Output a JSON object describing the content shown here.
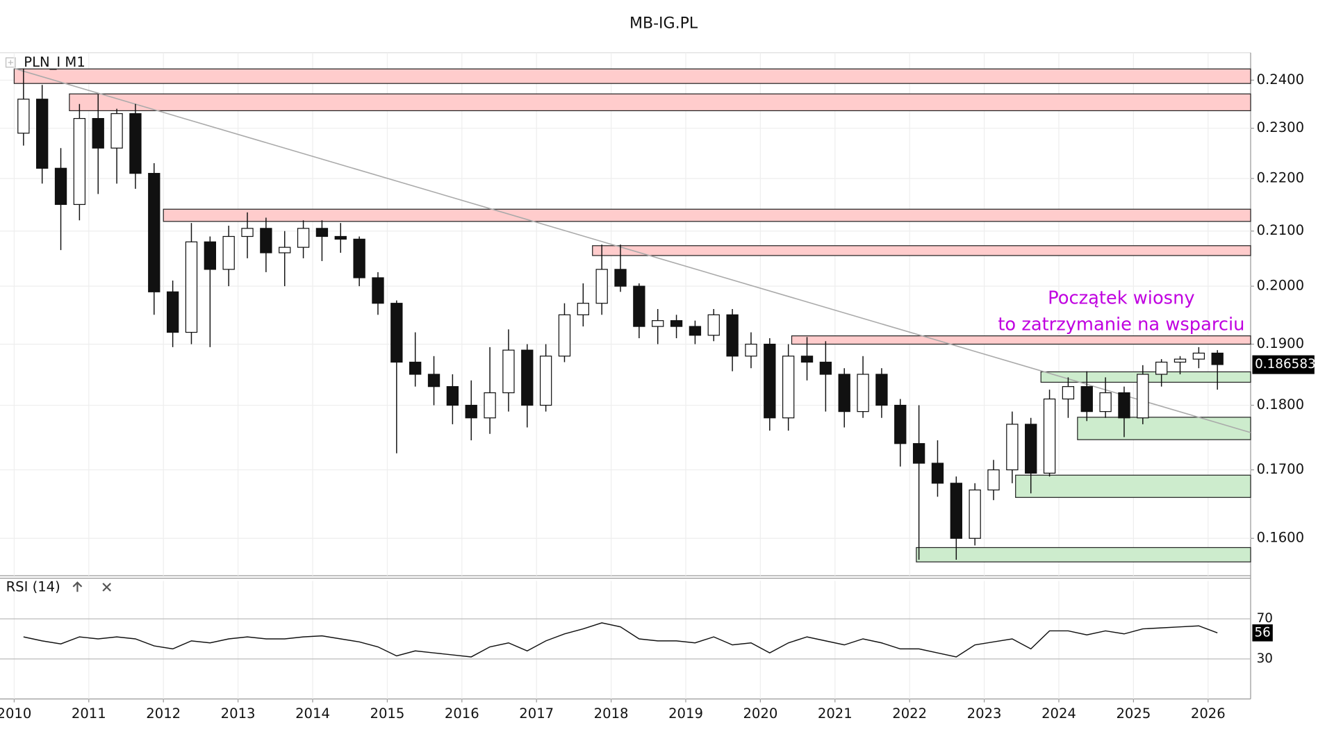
{
  "chart_data": [
    {
      "type": "candlestick",
      "title": "MB-IG.PL",
      "symbol_label": "PLN_I M1",
      "x": [
        2010.125,
        2010.375,
        2010.625,
        2010.875,
        2011.125,
        2011.375,
        2011.625,
        2011.875,
        2012.125,
        2012.375,
        2012.625,
        2012.875,
        2013.125,
        2013.375,
        2013.625,
        2013.875,
        2014.125,
        2014.375,
        2014.625,
        2014.875,
        2015.125,
        2015.375,
        2015.625,
        2015.875,
        2016.125,
        2016.375,
        2016.625,
        2016.875,
        2017.125,
        2017.375,
        2017.625,
        2017.875,
        2018.125,
        2018.375,
        2018.625,
        2018.875,
        2019.125,
        2019.375,
        2019.625,
        2019.875,
        2020.125,
        2020.375,
        2020.625,
        2020.875,
        2021.125,
        2021.375,
        2021.625,
        2021.875,
        2022.125,
        2022.375,
        2022.625,
        2022.875,
        2023.125,
        2023.375,
        2023.625,
        2023.875,
        2024.125,
        2024.375,
        2024.625,
        2024.875,
        2025.125,
        2025.375,
        2025.625,
        2025.875,
        2026.125
      ],
      "open": [
        0.229,
        0.236,
        0.222,
        0.215,
        0.232,
        0.226,
        0.233,
        0.221,
        0.199,
        0.192,
        0.208,
        0.203,
        0.209,
        0.2105,
        0.206,
        0.207,
        0.2105,
        0.209,
        0.2085,
        0.2015,
        0.197,
        0.187,
        0.185,
        0.183,
        0.18,
        0.178,
        0.182,
        0.189,
        0.18,
        0.188,
        0.195,
        0.197,
        0.203,
        0.2,
        0.193,
        0.194,
        0.193,
        0.1915,
        0.195,
        0.188,
        0.19,
        0.178,
        0.188,
        0.187,
        0.185,
        0.179,
        0.185,
        0.18,
        0.174,
        0.171,
        0.168,
        0.16,
        0.167,
        0.17,
        0.177,
        0.1695,
        0.181,
        0.183,
        0.179,
        0.182,
        0.178,
        0.185,
        0.187,
        0.1875,
        0.1885
      ],
      "high": [
        0.2425,
        0.239,
        0.226,
        0.235,
        0.237,
        0.234,
        0.235,
        0.223,
        0.201,
        0.2115,
        0.209,
        0.211,
        0.2135,
        0.2125,
        0.21,
        0.212,
        0.212,
        0.2115,
        0.209,
        0.2025,
        0.1975,
        0.192,
        0.188,
        0.185,
        0.184,
        0.1895,
        0.1925,
        0.19,
        0.19,
        0.197,
        0.2005,
        0.2075,
        0.2075,
        0.2005,
        0.196,
        0.195,
        0.194,
        0.196,
        0.196,
        0.192,
        0.191,
        0.19,
        0.1912,
        0.1905,
        0.186,
        0.188,
        0.186,
        0.181,
        0.18,
        0.1745,
        0.169,
        0.168,
        0.1715,
        0.179,
        0.178,
        0.1825,
        0.1845,
        0.1855,
        0.1845,
        0.183,
        0.1865,
        0.1875,
        0.188,
        0.1895,
        0.189
      ],
      "low": [
        0.2265,
        0.219,
        0.2065,
        0.212,
        0.217,
        0.219,
        0.218,
        0.195,
        0.1895,
        0.19,
        0.1895,
        0.2,
        0.205,
        0.2025,
        0.2,
        0.205,
        0.2045,
        0.206,
        0.2,
        0.195,
        0.1725,
        0.183,
        0.18,
        0.177,
        0.1745,
        0.1755,
        0.179,
        0.1765,
        0.179,
        0.187,
        0.193,
        0.195,
        0.199,
        0.191,
        0.19,
        0.191,
        0.19,
        0.1905,
        0.1855,
        0.186,
        0.176,
        0.176,
        0.184,
        0.179,
        0.1765,
        0.178,
        0.178,
        0.1705,
        0.157,
        0.166,
        0.157,
        0.159,
        0.1655,
        0.168,
        0.1665,
        0.169,
        0.178,
        0.1775,
        0.178,
        0.175,
        0.177,
        0.183,
        0.185,
        0.186,
        0.1825
      ],
      "close": [
        0.236,
        0.222,
        0.215,
        0.232,
        0.226,
        0.233,
        0.221,
        0.199,
        0.192,
        0.208,
        0.203,
        0.209,
        0.2105,
        0.206,
        0.207,
        0.2105,
        0.209,
        0.2085,
        0.2015,
        0.197,
        0.187,
        0.185,
        0.183,
        0.18,
        0.178,
        0.182,
        0.189,
        0.18,
        0.188,
        0.195,
        0.197,
        0.203,
        0.2,
        0.193,
        0.194,
        0.193,
        0.1915,
        0.195,
        0.188,
        0.19,
        0.178,
        0.188,
        0.187,
        0.185,
        0.179,
        0.185,
        0.18,
        0.174,
        0.171,
        0.168,
        0.16,
        0.167,
        0.17,
        0.177,
        0.1695,
        0.181,
        0.183,
        0.179,
        0.182,
        0.178,
        0.185,
        0.187,
        0.1875,
        0.1885,
        0.1866
      ],
      "xlim": [
        2009.81,
        2026.57
      ],
      "xticks": [
        2010,
        2011,
        2012,
        2013,
        2014,
        2015,
        2016,
        2017,
        2018,
        2019,
        2020,
        2021,
        2022,
        2023,
        2024,
        2025,
        2026
      ],
      "ylim": [
        0.1548,
        0.2459
      ],
      "log_scale": true,
      "grid": true,
      "yticks": [
        {
          "value": 0.16,
          "label": "0.1600"
        },
        {
          "value": 0.17,
          "label": "0.1700"
        },
        {
          "value": 0.18,
          "label": "0.1800"
        },
        {
          "value": 0.19,
          "label": "0.1900"
        },
        {
          "value": 0.2,
          "label": "0.2000"
        },
        {
          "value": 0.21,
          "label": "0.2100"
        },
        {
          "value": 0.22,
          "label": "0.2200"
        },
        {
          "value": 0.23,
          "label": "0.2300"
        },
        {
          "value": 0.24,
          "label": "0.2400"
        }
      ],
      "zones": [
        {
          "x0": 2010.0,
          "low": 0.2393,
          "high": 0.2424,
          "color": "#ffcccc"
        },
        {
          "x0": 2010.74,
          "low": 0.2336,
          "high": 0.2371,
          "color": "#ffcccc"
        },
        {
          "x0": 2012.0,
          "low": 0.2118,
          "high": 0.2141,
          "color": "#ffcccc"
        },
        {
          "x0": 2017.75,
          "low": 0.2055,
          "high": 0.2073,
          "color": "#ffcccc"
        },
        {
          "x0": 2020.42,
          "low": 0.19,
          "high": 0.1914,
          "color": "#ffcccc"
        },
        {
          "x0": 2023.76,
          "low": 0.1837,
          "high": 0.1854,
          "color": "#cdeccd"
        },
        {
          "x0": 2024.25,
          "low": 0.1746,
          "high": 0.1781,
          "color": "#cdeccd"
        },
        {
          "x0": 2023.42,
          "low": 0.1659,
          "high": 0.1692,
          "color": "#cdeccd"
        },
        {
          "x0": 2022.09,
          "low": 0.1567,
          "high": 0.1587,
          "color": "#cdeccd"
        }
      ],
      "trendline": {
        "x": [
          2010.0,
          2026.57
        ],
        "y": [
          0.2425,
          0.1757
        ],
        "color": "#aaaaaa"
      },
      "last_price": 0.186583,
      "annotation": {
        "lines": [
          "Początek wiosny",
          "to zatrzymanie na wsparciu"
        ],
        "color": "#c000e0"
      }
    },
    {
      "type": "line",
      "title": "RSI (14)",
      "color": "#111111",
      "values": [
        52,
        48,
        45,
        52,
        50,
        52,
        50,
        43,
        40,
        48,
        46,
        50,
        52,
        50,
        50,
        52,
        53,
        50,
        47,
        42,
        33,
        38,
        36,
        34,
        32,
        42,
        46,
        38,
        48,
        55,
        60,
        66,
        62,
        50,
        48,
        48,
        46,
        52,
        44,
        46,
        36,
        46,
        52,
        48,
        44,
        50,
        46,
        40,
        40,
        36,
        32,
        44,
        47,
        50,
        40,
        58,
        58,
        54,
        58,
        55,
        60,
        61,
        62,
        63,
        56
      ],
      "ylim": [
        -10,
        108
      ],
      "yticks": [
        30,
        70
      ],
      "last_value": 56
    }
  ]
}
